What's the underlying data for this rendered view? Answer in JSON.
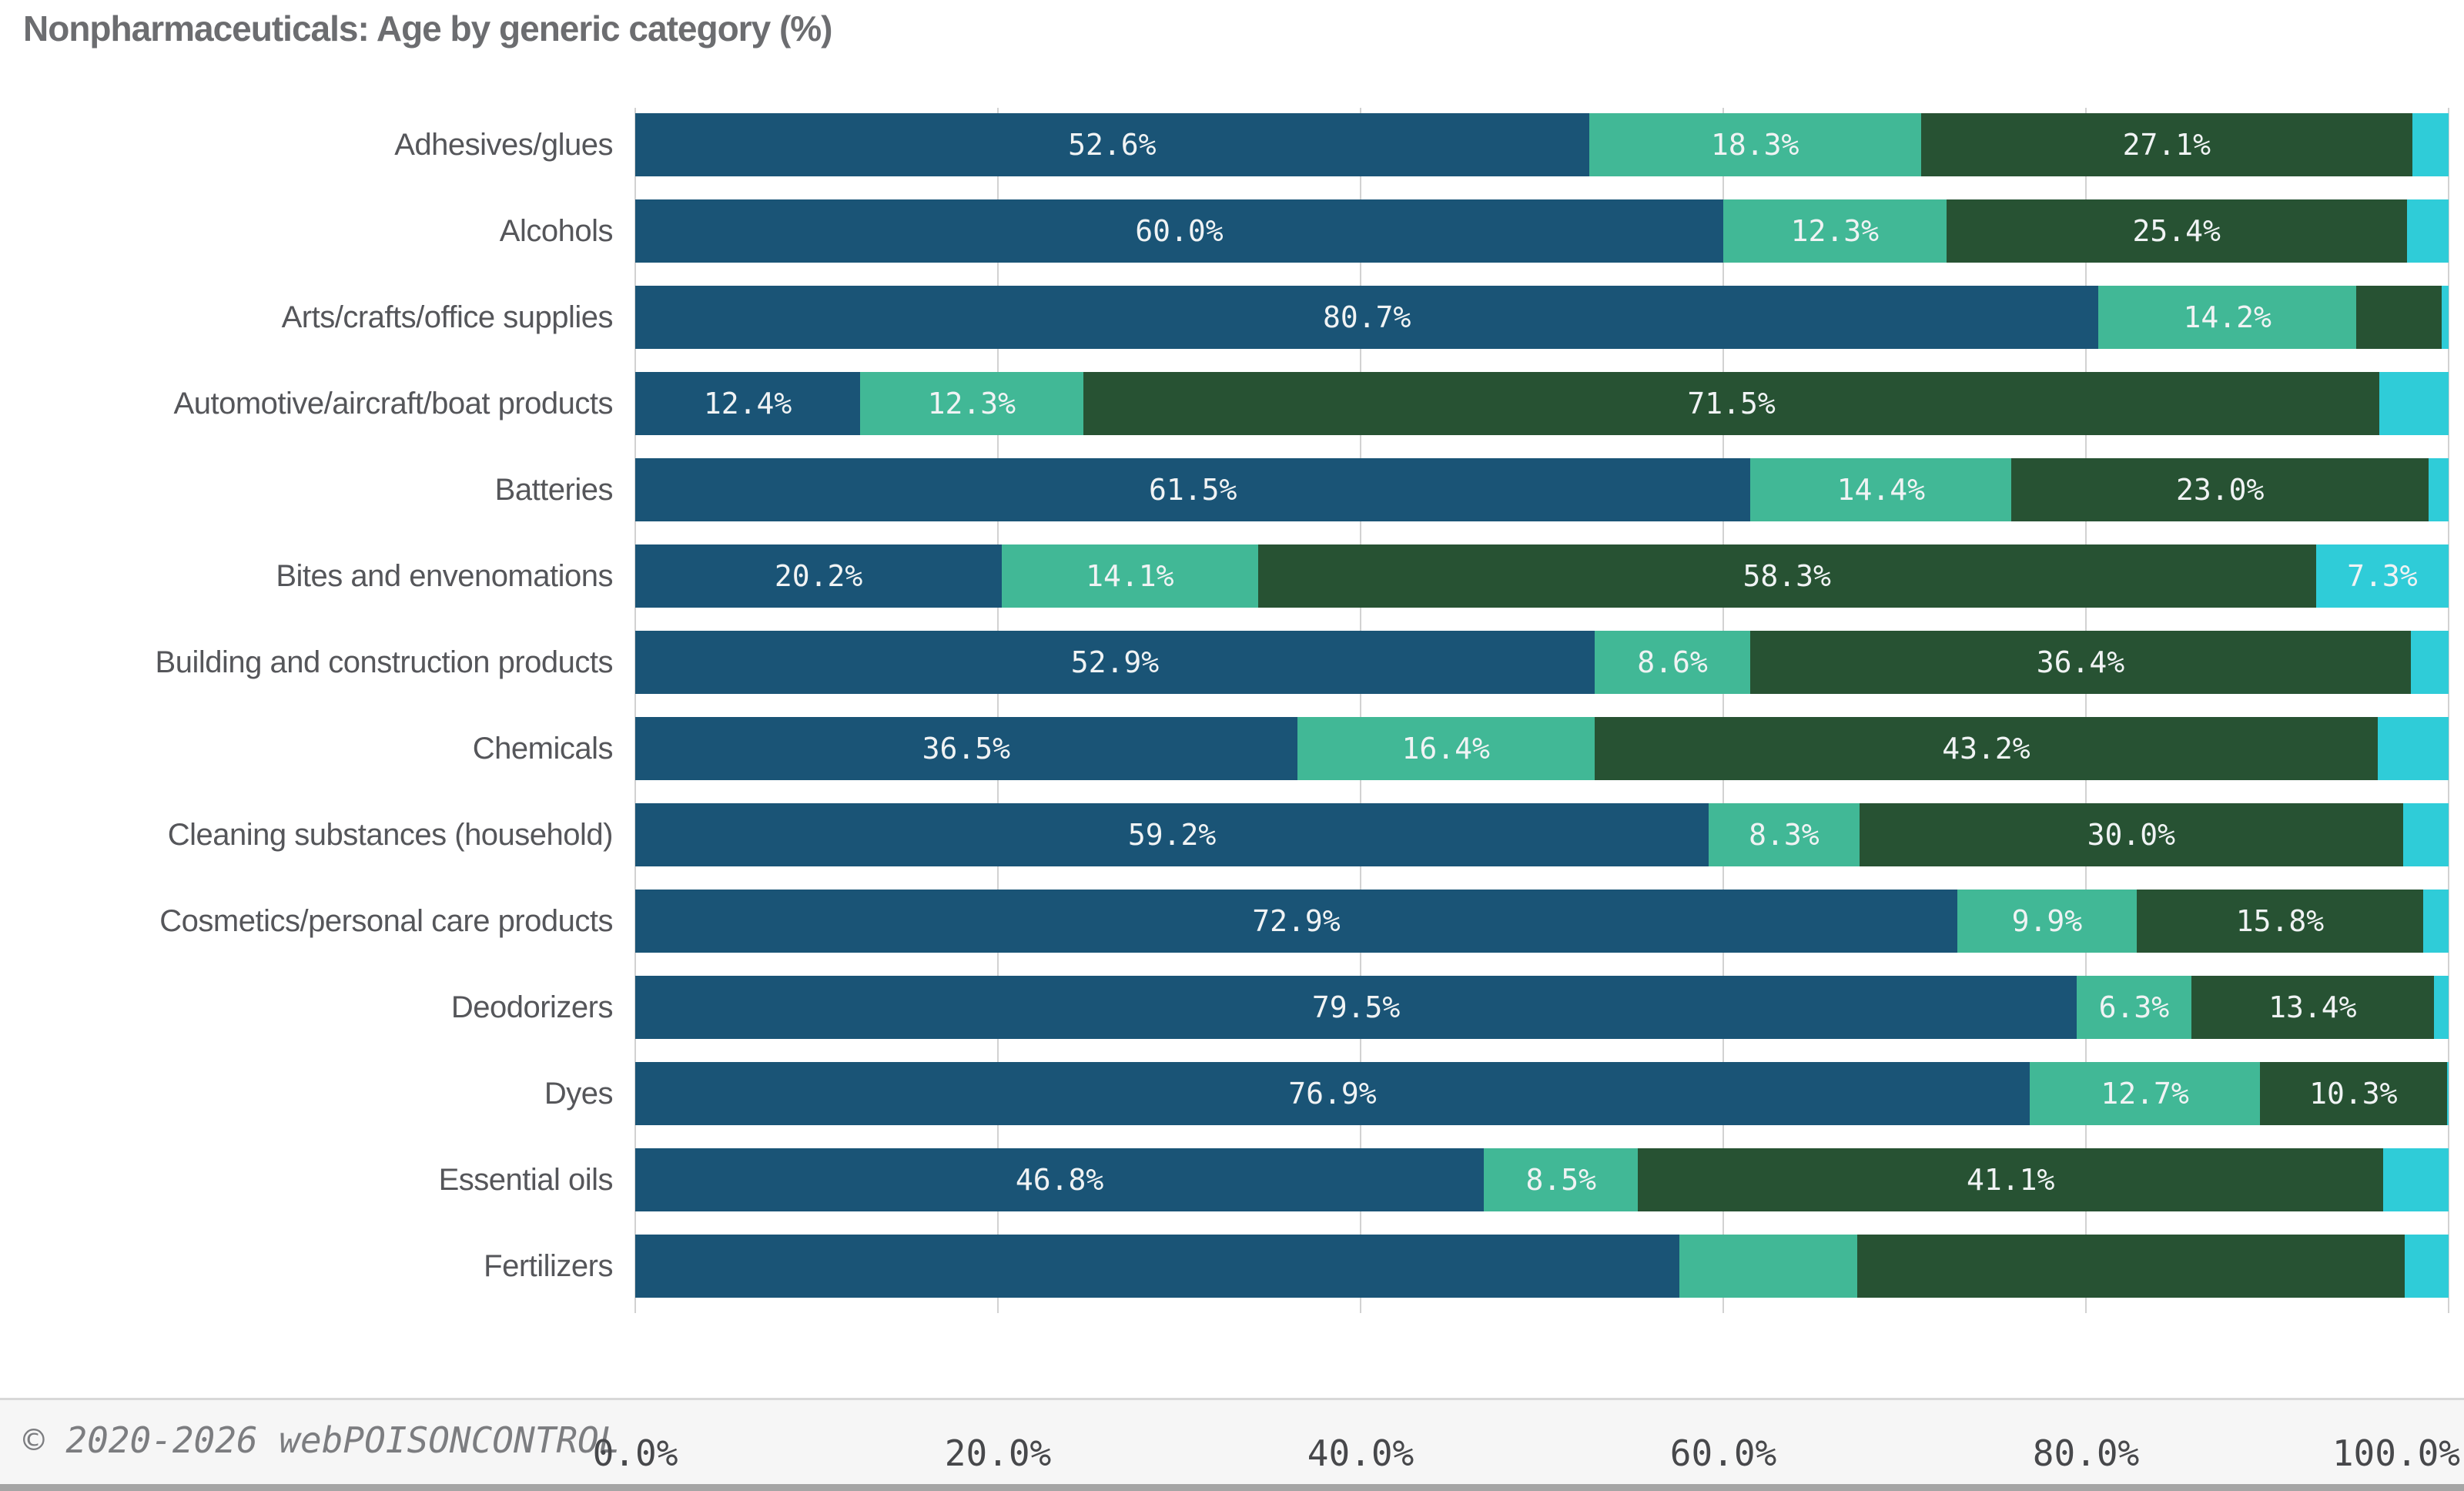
{
  "header": {
    "title": "Nonpharmaceuticals: Age by generic category (%)"
  },
  "chart_data": {
    "type": "bar",
    "orientation": "horizontal",
    "stacked": true,
    "title": "Nonpharmaceuticals: Age by generic category (%)",
    "xlabel": "",
    "ylabel": "",
    "xlim": [
      0,
      100
    ],
    "grid": true,
    "legend": "none",
    "x_ticks": [
      "0.0%",
      "20.0%",
      "40.0%",
      "60.0%",
      "80.0%",
      "100.0%"
    ],
    "categories": [
      "Adhesives/glues",
      "Alcohols",
      "Arts/crafts/office supplies",
      "Automotive/aircraft/boat products",
      "Batteries",
      "Bites and envenomations",
      "Building and construction products",
      "Chemicals",
      "Cleaning substances (household)",
      "Cosmetics/personal care products",
      "Deodorizers",
      "Dyes",
      "Essential oils",
      "Fertilizers"
    ],
    "series": [
      {
        "name": "age-group-1",
        "color": "#1a5476",
        "values": [
          52.6,
          60.0,
          80.7,
          12.4,
          61.5,
          20.2,
          52.9,
          36.5,
          59.2,
          72.9,
          79.5,
          76.9,
          46.8,
          57.6
        ],
        "bar_labels": [
          "52.6%",
          "60.0%",
          "80.7%",
          "12.4%",
          "61.5%",
          "20.2%",
          "52.9%",
          "36.5%",
          "59.2%",
          "72.9%",
          "79.5%",
          "76.9%",
          "46.8%",
          ""
        ]
      },
      {
        "name": "age-group-2",
        "color": "#41b896",
        "values": [
          18.3,
          12.3,
          14.2,
          12.3,
          14.4,
          14.1,
          8.6,
          16.4,
          8.3,
          9.9,
          6.3,
          12.7,
          8.5,
          9.8
        ],
        "bar_labels": [
          "18.3%",
          "12.3%",
          "14.2%",
          "12.3%",
          "14.4%",
          "14.1%",
          "8.6%",
          "16.4%",
          "8.3%",
          "9.9%",
          "6.3%",
          "12.7%",
          "8.5%",
          ""
        ]
      },
      {
        "name": "age-group-3",
        "color": "#275233",
        "values": [
          27.1,
          25.4,
          4.7,
          71.5,
          23.0,
          58.3,
          36.4,
          43.2,
          30.0,
          15.8,
          13.4,
          10.3,
          41.1,
          30.2
        ],
        "bar_labels": [
          "27.1%",
          "25.4%",
          "",
          "71.5%",
          "23.0%",
          "58.3%",
          "36.4%",
          "43.2%",
          "30.0%",
          "15.8%",
          "13.4%",
          "10.3%",
          "41.1%",
          ""
        ]
      },
      {
        "name": "age-group-4",
        "color": "#2fccd8",
        "values": [
          2.0,
          2.3,
          0.4,
          3.8,
          1.1,
          7.3,
          2.1,
          3.9,
          2.5,
          1.4,
          0.8,
          0.1,
          3.6,
          2.4
        ],
        "bar_labels": [
          "",
          "",
          "",
          "",
          "",
          "7.3%",
          "",
          "",
          "",
          "",
          "",
          "",
          "",
          ""
        ]
      }
    ]
  },
  "palette": {
    "grid_color": "#d2d2d2",
    "title_color": "#6c6d70",
    "category_label_color": "#55565a",
    "tick_label_color": "#47484b",
    "bar_label_color": "#f0f3f4"
  },
  "footer": {
    "copyright": "© 2020-2026 webPOISONCONTROL"
  }
}
